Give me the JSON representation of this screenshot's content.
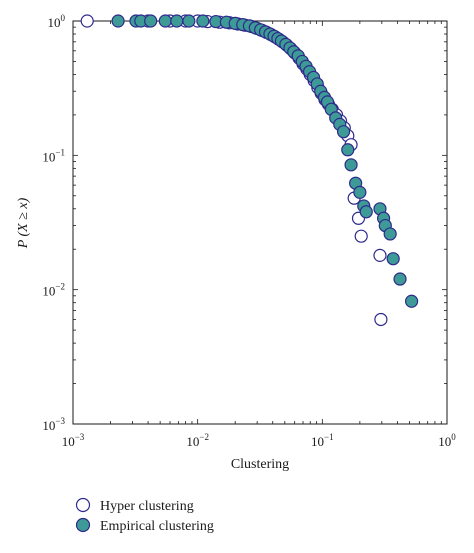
{
  "chart_data": {
    "type": "scatter",
    "xlabel": "Clustering",
    "ylabel": "P (X ≥ x)",
    "xscale": "log",
    "yscale": "log",
    "xlim": [
      0.001,
      1
    ],
    "ylim": [
      0.001,
      1
    ],
    "x_ticks": [
      {
        "value": 0.001,
        "base": "10",
        "exp": "−3"
      },
      {
        "value": 0.01,
        "base": "10",
        "exp": "−2"
      },
      {
        "value": 0.1,
        "base": "10",
        "exp": "−1"
      },
      {
        "value": 1,
        "base": "10",
        "exp": "0"
      }
    ],
    "y_ticks": [
      {
        "value": 0.001,
        "base": "10",
        "exp": "−3"
      },
      {
        "value": 0.01,
        "base": "10",
        "exp": "−2"
      },
      {
        "value": 0.1,
        "base": "10",
        "exp": "−1"
      },
      {
        "value": 1,
        "base": "10",
        "exp": "0"
      }
    ],
    "grid": false,
    "legend_position": "bottom-left, below plot",
    "series": [
      {
        "name": "Hyper clustering",
        "marker": "open-circle",
        "color": "#2e2a8c",
        "fill": "#ffffff",
        "points": [
          [
            0.0013,
            1.0
          ],
          [
            0.004,
            1.0
          ],
          [
            0.006,
            1.0
          ],
          [
            0.008,
            1.0
          ],
          [
            0.01,
            1.0
          ],
          [
            0.012,
            0.99
          ],
          [
            0.015,
            0.98
          ],
          [
            0.018,
            0.97
          ],
          [
            0.021,
            0.95
          ],
          [
            0.024,
            0.93
          ],
          [
            0.027,
            0.91
          ],
          [
            0.03,
            0.88
          ],
          [
            0.033,
            0.85
          ],
          [
            0.036,
            0.82
          ],
          [
            0.039,
            0.79
          ],
          [
            0.042,
            0.76
          ],
          [
            0.045,
            0.73
          ],
          [
            0.048,
            0.7
          ],
          [
            0.052,
            0.66
          ],
          [
            0.056,
            0.62
          ],
          [
            0.06,
            0.58
          ],
          [
            0.065,
            0.53
          ],
          [
            0.07,
            0.48
          ],
          [
            0.075,
            0.44
          ],
          [
            0.08,
            0.4
          ],
          [
            0.086,
            0.36
          ],
          [
            0.092,
            0.32
          ],
          [
            0.098,
            0.29
          ],
          [
            0.105,
            0.26
          ],
          [
            0.112,
            0.24
          ],
          [
            0.12,
            0.22
          ],
          [
            0.13,
            0.2
          ],
          [
            0.14,
            0.18
          ],
          [
            0.15,
            0.16
          ],
          [
            0.16,
            0.14
          ],
          [
            0.17,
            0.12
          ],
          [
            0.18,
            0.048
          ],
          [
            0.195,
            0.034
          ],
          [
            0.205,
            0.025
          ],
          [
            0.29,
            0.018
          ],
          [
            0.295,
            0.006
          ]
        ]
      },
      {
        "name": "Empirical clustering",
        "marker": "filled-circle",
        "color": "#2e2a8c",
        "fill": "#3d9a96",
        "points": [
          [
            0.0023,
            1.0
          ],
          [
            0.0032,
            1.0
          ],
          [
            0.0035,
            1.0
          ],
          [
            0.0042,
            1.0
          ],
          [
            0.0055,
            1.0
          ],
          [
            0.0068,
            1.0
          ],
          [
            0.0085,
            1.0
          ],
          [
            0.011,
            1.0
          ],
          [
            0.014,
            0.99
          ],
          [
            0.017,
            0.98
          ],
          [
            0.02,
            0.96
          ],
          [
            0.023,
            0.94
          ],
          [
            0.026,
            0.92
          ],
          [
            0.029,
            0.89
          ],
          [
            0.032,
            0.86
          ],
          [
            0.035,
            0.83
          ],
          [
            0.038,
            0.8
          ],
          [
            0.041,
            0.77
          ],
          [
            0.044,
            0.74
          ],
          [
            0.047,
            0.71
          ],
          [
            0.051,
            0.67
          ],
          [
            0.055,
            0.63
          ],
          [
            0.059,
            0.59
          ],
          [
            0.064,
            0.55
          ],
          [
            0.069,
            0.5
          ],
          [
            0.074,
            0.46
          ],
          [
            0.079,
            0.42
          ],
          [
            0.085,
            0.38
          ],
          [
            0.091,
            0.34
          ],
          [
            0.097,
            0.3
          ],
          [
            0.104,
            0.27
          ],
          [
            0.11,
            0.25
          ],
          [
            0.118,
            0.22
          ],
          [
            0.128,
            0.19
          ],
          [
            0.138,
            0.17
          ],
          [
            0.148,
            0.15
          ],
          [
            0.16,
            0.11
          ],
          [
            0.17,
            0.085
          ],
          [
            0.185,
            0.062
          ],
          [
            0.2,
            0.053
          ],
          [
            0.215,
            0.042
          ],
          [
            0.225,
            0.038
          ],
          [
            0.29,
            0.04
          ],
          [
            0.31,
            0.034
          ],
          [
            0.32,
            0.03
          ],
          [
            0.35,
            0.026
          ],
          [
            0.37,
            0.017
          ],
          [
            0.42,
            0.012
          ],
          [
            0.52,
            0.0082
          ]
        ]
      }
    ]
  }
}
